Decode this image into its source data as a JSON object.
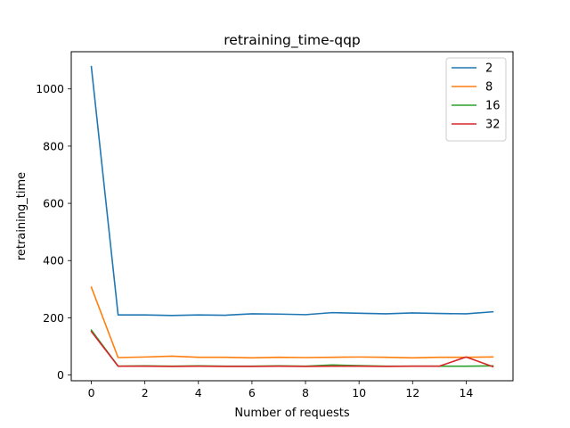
{
  "chart_data": {
    "type": "line",
    "title": "retraining_time-qqp",
    "xlabel": "Number of requests",
    "ylabel": "retraining_time",
    "xlim": [
      -0.75,
      15.75
    ],
    "ylim": [
      -20,
      1130
    ],
    "xticks": [
      0,
      2,
      4,
      6,
      8,
      10,
      12,
      14
    ],
    "yticks": [
      0,
      200,
      400,
      600,
      800,
      1000
    ],
    "grid": false,
    "legend_position": "top-right",
    "x": [
      0,
      1,
      2,
      3,
      4,
      5,
      6,
      7,
      8,
      9,
      10,
      11,
      12,
      13,
      14,
      15
    ],
    "series": [
      {
        "name": "2",
        "color": "#1f77b4",
        "values": [
          1078,
          210,
          210,
          208,
          210,
          209,
          214,
          213,
          211,
          218,
          216,
          214,
          217,
          215,
          214,
          221
        ]
      },
      {
        "name": "8",
        "color": "#ff7f0e",
        "values": [
          307,
          61,
          63,
          66,
          62,
          62,
          60,
          62,
          61,
          62,
          63,
          62,
          60,
          62,
          62,
          63
        ]
      },
      {
        "name": "16",
        "color": "#2ca02c",
        "values": [
          157,
          31,
          32,
          31,
          32,
          31,
          31,
          32,
          31,
          35,
          33,
          31,
          31,
          31,
          31,
          32
        ]
      },
      {
        "name": "32",
        "color": "#d62728",
        "values": [
          152,
          31,
          31,
          30,
          31,
          30,
          30,
          31,
          30,
          31,
          31,
          30,
          31,
          31,
          63,
          29
        ]
      }
    ]
  }
}
